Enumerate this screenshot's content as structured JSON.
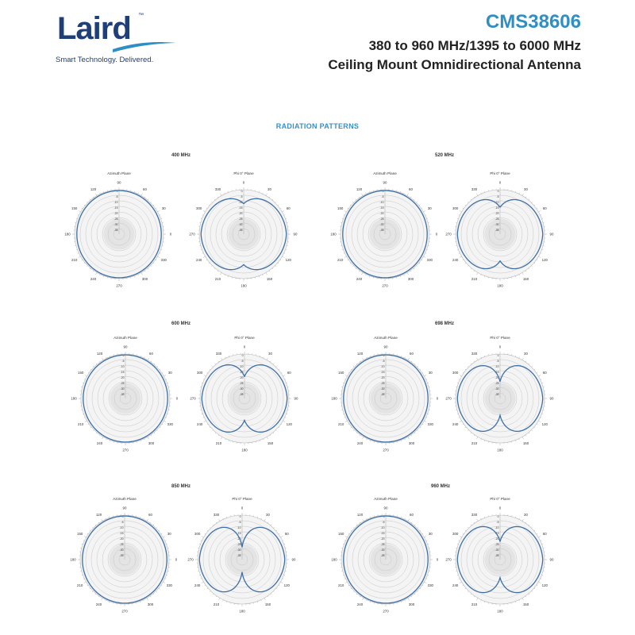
{
  "logo": {
    "name": "Laird",
    "trademark": "™",
    "tagline": "Smart Technology. Delivered."
  },
  "header": {
    "product_code": "CMS38606",
    "line2": "380 to 960 MHz/1395 to 6000 MHz",
    "line3": "Ceiling Mount Omnidirectional Antenna"
  },
  "section_title": "RADIATION PATTERNS",
  "colors": {
    "accent": "#2f8fc4",
    "brand": "#1f3f79",
    "trace": "#3d6fa6"
  },
  "plot_labels": {
    "azimuth_title": "Azimuth Plane",
    "phi_title": "Phi 0° Plane",
    "azimuth_angles": [
      "90",
      "60",
      "30",
      "0",
      "330",
      "300",
      "270",
      "240",
      "210",
      "180",
      "150",
      "120"
    ],
    "phi_angles": [
      "0",
      "30",
      "60",
      "90",
      "120",
      "150",
      "180",
      "210",
      "240",
      "270",
      "300",
      "330"
    ],
    "radial_ticks": [
      "0",
      "-5",
      "-10",
      "-15",
      "-20",
      "-25",
      "-30",
      "-35"
    ]
  },
  "patterns": [
    {
      "freq": "400 MHz",
      "null_depth": 0.16
    },
    {
      "freq": "520 MHz",
      "null_depth": 0.22
    },
    {
      "freq": "600 MHz",
      "null_depth": 0.3
    },
    {
      "freq": "698 MHz",
      "null_depth": 0.38
    },
    {
      "freq": "850 MHz",
      "null_depth": 0.45
    },
    {
      "freq": "960 MHz",
      "null_depth": 0.36
    }
  ]
}
